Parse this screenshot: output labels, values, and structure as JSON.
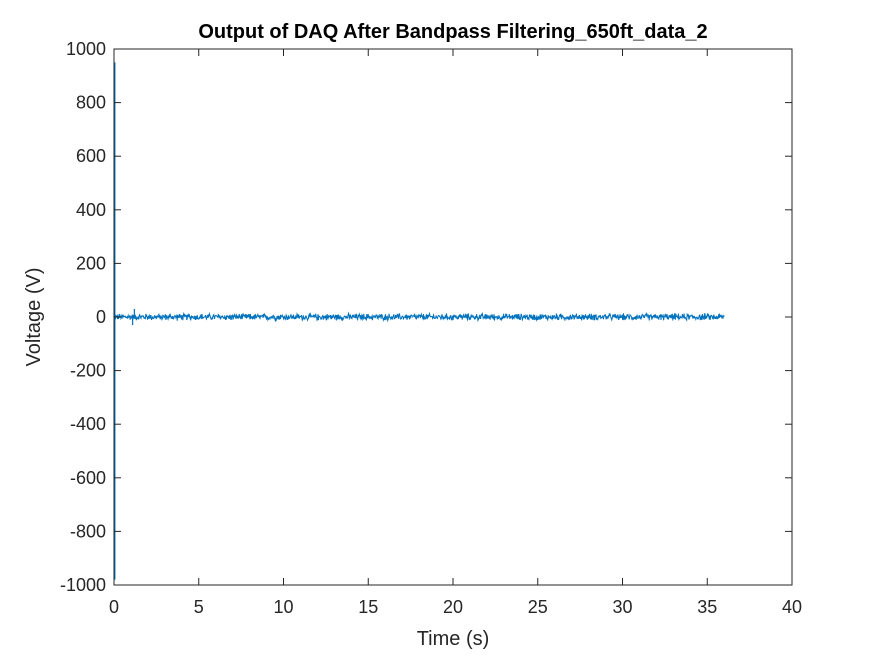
{
  "chart_data": {
    "type": "line",
    "title": "Output of DAQ After Bandpass Filtering_650ft_data_2",
    "xlabel": "Time (s)",
    "ylabel": "Voltage (V)",
    "xlim": [
      0,
      40
    ],
    "ylim": [
      -1000,
      1000
    ],
    "x_ticks": [
      0,
      5,
      10,
      15,
      20,
      25,
      30,
      35,
      40
    ],
    "y_ticks": [
      -1000,
      -800,
      -600,
      -400,
      -200,
      0,
      200,
      400,
      600,
      800,
      1000
    ],
    "x_tick_labels": [
      "0",
      "5",
      "10",
      "15",
      "20",
      "25",
      "30",
      "35",
      "40"
    ],
    "y_tick_labels": [
      "-1000",
      "-800",
      "-600",
      "-400",
      "-200",
      "0",
      "200",
      "400",
      "600",
      "800",
      "1000"
    ],
    "grid": false,
    "series": [
      {
        "color": "#0072BD",
        "x_range": [
          0,
          36
        ],
        "baseline": 0,
        "noise_band": [
          -15,
          15
        ],
        "spikes": [
          {
            "x": 0.05,
            "y": 950
          },
          {
            "x": 0.05,
            "y": -980
          },
          {
            "x": 1.2,
            "y": 30
          },
          {
            "x": 1.1,
            "y": -30
          }
        ]
      }
    ]
  }
}
